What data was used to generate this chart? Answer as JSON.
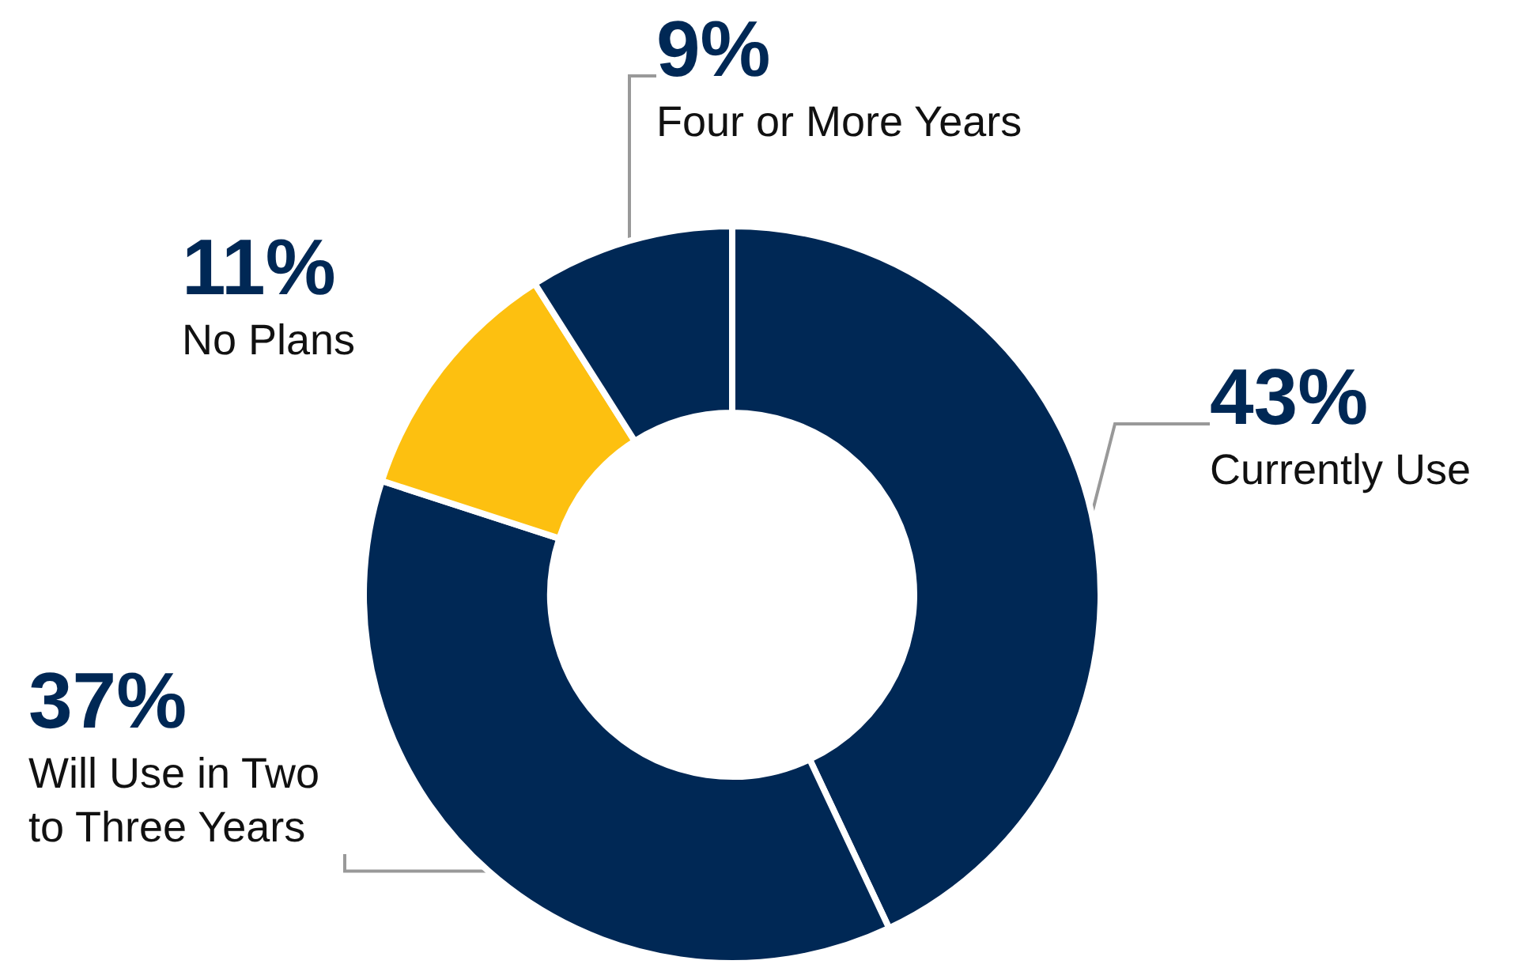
{
  "chart_data": {
    "type": "donut",
    "categories": [
      "Currently Use",
      "Will Use in Two to Three Years",
      "No Plans",
      "Four or More Years"
    ],
    "values": [
      43,
      37,
      11,
      9
    ],
    "colors": [
      "#002855",
      "#002855",
      "#fdc010",
      "#002855"
    ],
    "value_labels": [
      "43%",
      "37%",
      "11%",
      "9%"
    ]
  }
}
